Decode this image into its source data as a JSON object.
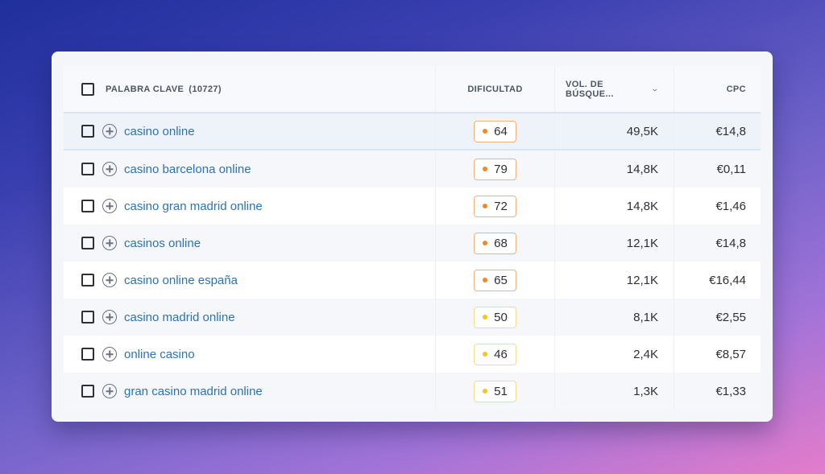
{
  "header": {
    "keyword_label": "PALABRA CLAVE",
    "keyword_count": "(10727)",
    "difficulty_label": "DIFICULTAD",
    "volume_label": "VOL. DE BÚSQUE...",
    "volume_sort_icon": "chevron-down-icon",
    "cpc_label": "CPC"
  },
  "colors": {
    "link": "#2b73b5",
    "difficulty_orange": "#f08a24",
    "difficulty_yellow": "#f3c522"
  },
  "rows": [
    {
      "keyword": "casino online",
      "difficulty": "64",
      "level": "orange",
      "volume": "49,5K",
      "cpc": "€14,8"
    },
    {
      "keyword": "casino barcelona online",
      "difficulty": "79",
      "level": "orange",
      "volume": "14,8K",
      "cpc": "€0,11"
    },
    {
      "keyword": "casino gran madrid online",
      "difficulty": "72",
      "level": "orange",
      "volume": "14,8K",
      "cpc": "€1,46"
    },
    {
      "keyword": "casinos online",
      "difficulty": "68",
      "level": "orange",
      "volume": "12,1K",
      "cpc": "€14,8"
    },
    {
      "keyword": "casino online españa",
      "difficulty": "65",
      "level": "orange",
      "volume": "12,1K",
      "cpc": "€16,44"
    },
    {
      "keyword": "casino madrid online",
      "difficulty": "50",
      "level": "yellow",
      "volume": "8,1K",
      "cpc": "€2,55"
    },
    {
      "keyword": "online casino",
      "difficulty": "46",
      "level": "yellow",
      "volume": "2,4K",
      "cpc": "€8,57"
    },
    {
      "keyword": "gran casino madrid online",
      "difficulty": "51",
      "level": "yellow",
      "volume": "1,3K",
      "cpc": "€1,33"
    }
  ]
}
